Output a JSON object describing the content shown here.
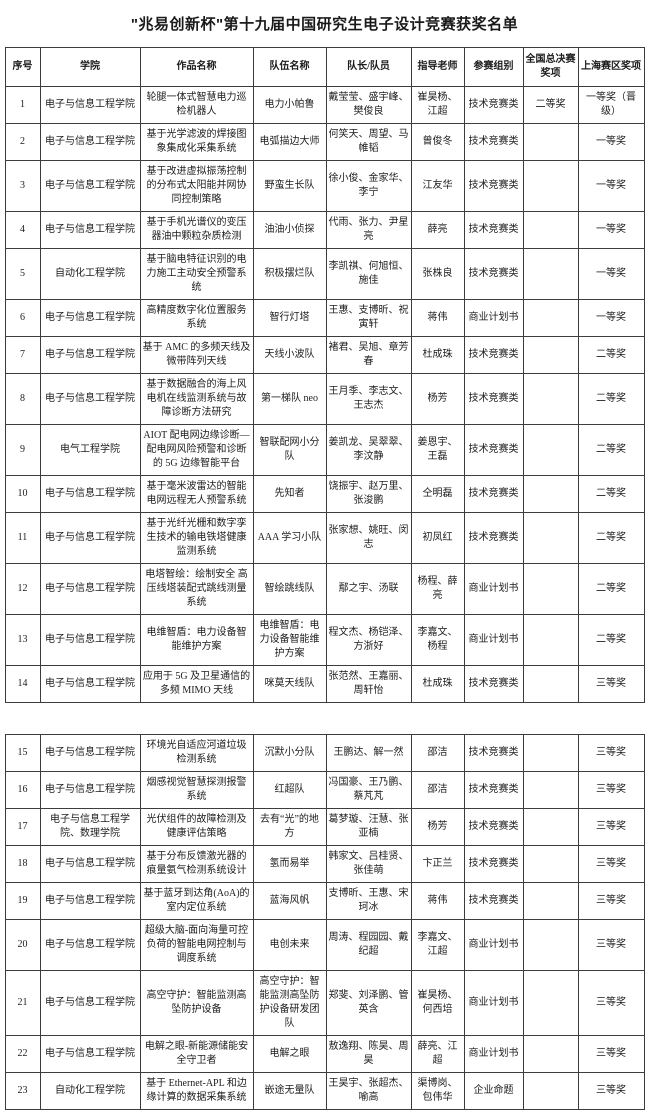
{
  "title": "\"兆易创新杯\"第十九届中国研究生电子设计竞赛获奖名单",
  "table": {
    "split_after_row": 14,
    "columns": [
      {
        "key": "no",
        "label": "序号"
      },
      {
        "key": "college",
        "label": "学院"
      },
      {
        "key": "work",
        "label": "作品名称"
      },
      {
        "key": "team",
        "label": "队伍名称"
      },
      {
        "key": "members",
        "label": "队长/队员"
      },
      {
        "key": "advisor",
        "label": "指导老师"
      },
      {
        "key": "category",
        "label": "参赛组别"
      },
      {
        "key": "national",
        "label": "全国总决赛奖项"
      },
      {
        "key": "regional",
        "label": "上海赛区奖项"
      }
    ],
    "rows": [
      {
        "no": "1",
        "college": "电子与信息工程学院",
        "work": "轮腿一体式智慧电力巡检机器人",
        "team": "电力小帕鲁",
        "members": "戴莹莹、盛宇峰、樊俊良",
        "advisor": "崔昊杨、江超",
        "category": "技术竞赛类",
        "national": "二等奖",
        "regional": "一等奖（晋级）"
      },
      {
        "no": "2",
        "college": "电子与信息工程学院",
        "work": "基于光学滤波的焊接图象集成化采集系统",
        "team": "电弧描边大师",
        "members": "何笑天、周望、马帷韬",
        "advisor": "曾俊冬",
        "category": "技术竞赛类",
        "national": "",
        "regional": "一等奖"
      },
      {
        "no": "3",
        "college": "电子与信息工程学院",
        "work": "基于改进虚拟振荡控制的分布式太阳能并网协同控制策略",
        "team": "野蛮生长队",
        "members": "徐小俊、金家华、李宁",
        "advisor": "江友华",
        "category": "技术竞赛类",
        "national": "",
        "regional": "一等奖"
      },
      {
        "no": "4",
        "college": "电子与信息工程学院",
        "work": "基于手机光谱仪的变压器油中颗粒杂质检测",
        "team": "油油小侦探",
        "members": "代雨、张力、尹星亮",
        "advisor": "薛亮",
        "category": "技术竞赛类",
        "national": "",
        "regional": "一等奖"
      },
      {
        "no": "5",
        "college": "自动化工程学院",
        "work": "基于脑电特征识别的电力施工主动安全预警系统",
        "team": "积极摆烂队",
        "members": "李凯祺、何旭恒、施佳",
        "advisor": "张株良",
        "category": "技术竞赛类",
        "national": "",
        "regional": "一等奖"
      },
      {
        "no": "6",
        "college": "电子与信息工程学院",
        "work": "高精度数字化位置服务系统",
        "team": "智行灯塔",
        "members": "王惠、支博昕、祝寅轩",
        "advisor": "蒋伟",
        "category": "商业计划书",
        "national": "",
        "regional": "一等奖"
      },
      {
        "no": "7",
        "college": "电子与信息工程学院",
        "work": "基于 AMC 的多频天线及微带阵列天线",
        "team": "天线小波队",
        "members": "褚君、吴旭、章芳春",
        "advisor": "杜成珠",
        "category": "技术竞赛类",
        "national": "",
        "regional": "二等奖"
      },
      {
        "no": "8",
        "college": "电子与信息工程学院",
        "work": "基于数据融合的海上风电机在线监测系统与故障诊断方法研究",
        "team": "第一梯队 neo",
        "members": "王月季、李志文、王志杰",
        "advisor": "杨芳",
        "category": "技术竞赛类",
        "national": "",
        "regional": "二等奖"
      },
      {
        "no": "9",
        "college": "电气工程学院",
        "work": "AIOT 配电网边缘诊断—配电网风险预警和诊断的 5G 边缘智能平台",
        "team": "智联配网小分队",
        "members": "姜凯龙、吴翠翠、李汶静",
        "advisor": "姜恩宇、王磊",
        "category": "技术竞赛类",
        "national": "",
        "regional": "二等奖"
      },
      {
        "no": "10",
        "college": "电子与信息工程学院",
        "work": "基于毫米波雷达的智能电网远程无人预警系统",
        "team": "先知者",
        "members": "饶振宇、赵万里、张浚鹏",
        "advisor": "仝明磊",
        "category": "技术竞赛类",
        "national": "",
        "regional": "二等奖"
      },
      {
        "no": "11",
        "college": "电子与信息工程学院",
        "work": "基于光纤光栅和数字孪生技术的输电铁塔健康监测系统",
        "team": "AAA 学习小队",
        "members": "张家想、姚旺、闵志",
        "advisor": "初凤红",
        "category": "技术竞赛类",
        "national": "",
        "regional": "二等奖"
      },
      {
        "no": "12",
        "college": "电子与信息工程学院",
        "work": "电塔智绘：绘制安全 高压线塔装配式跳线测量系统",
        "team": "智绘跳线队",
        "members": "鄢之宇、汤联",
        "advisor": "杨程、薛亮",
        "category": "商业计划书",
        "national": "",
        "regional": "二等奖"
      },
      {
        "no": "13",
        "college": "电子与信息工程学院",
        "work": "电维智盾：电力设备智能维护方案",
        "team": "电维智盾：电力设备智能维护方案",
        "members": "程文杰、杨铠泽、方浙好",
        "advisor": "李嘉文、杨程",
        "category": "商业计划书",
        "national": "",
        "regional": "二等奖"
      },
      {
        "no": "14",
        "college": "电子与信息工程学院",
        "work": "应用于 5G 及卫星通信的多频 MIMO 天线",
        "team": "咪莫天线队",
        "members": "张范然、王嘉丽、周轩怡",
        "advisor": "杜成珠",
        "category": "技术竞赛类",
        "national": "",
        "regional": "三等奖"
      },
      {
        "no": "15",
        "college": "电子与信息工程学院",
        "work": "环境光自适应河道垃圾检测系统",
        "team": "沉默小分队",
        "members": "王鹏达、解一然",
        "advisor": "邵洁",
        "category": "技术竞赛类",
        "national": "",
        "regional": "三等奖"
      },
      {
        "no": "16",
        "college": "电子与信息工程学院",
        "work": "烟感视觉智慧探测报警系统",
        "team": "红超队",
        "members": "冯国豪、王乃鹏、蔡芃芃",
        "advisor": "邵洁",
        "category": "技术竞赛类",
        "national": "",
        "regional": "三等奖"
      },
      {
        "no": "17",
        "college": "电子与信息工程学院、数理学院",
        "work": "光伏组件的故障检测及健康评估策略",
        "team": "去有“光”的地方",
        "members": "葛梦璇、汪慧、张亚楠",
        "advisor": "杨芳",
        "category": "技术竞赛类",
        "national": "",
        "regional": "三等奖"
      },
      {
        "no": "18",
        "college": "电子与信息工程学院",
        "work": "基于分布反馈激光器的痕量氨气检测系统设计",
        "team": "氢而易举",
        "members": "韩家文、吕桂贤、张佳萌",
        "advisor": "卞正兰",
        "category": "技术竞赛类",
        "national": "",
        "regional": "三等奖"
      },
      {
        "no": "19",
        "college": "电子与信息工程学院",
        "work": "基于蓝牙到达角(AoA)的室内定位系统",
        "team": "蓝海风帆",
        "members": "支博昕、王惠、宋珂冰",
        "advisor": "蒋伟",
        "category": "技术竞赛类",
        "national": "",
        "regional": "三等奖"
      },
      {
        "no": "20",
        "college": "电子与信息工程学院",
        "work": "超级大脑-面向海量可控负荷的智能电网控制与调度系统",
        "team": "电创未来",
        "members": "周涛、程园园、戴纪超",
        "advisor": "李嘉文、江超",
        "category": "商业计划书",
        "national": "",
        "regional": "三等奖"
      },
      {
        "no": "21",
        "college": "电子与信息工程学院",
        "work": "高空守护：智能监测高坠防护设备",
        "team": "高空守护：智能监测高坠防护设备研发团队",
        "members": "郑斐、刘泽鹏、管英含",
        "advisor": "崔昊杨、何西培",
        "category": "商业计划书",
        "national": "",
        "regional": "三等奖"
      },
      {
        "no": "22",
        "college": "电子与信息工程学院",
        "work": "电解之眼-新能源储能安全守卫者",
        "team": "电解之眼",
        "members": "敖逸翔、陈昊、周昊",
        "advisor": "薛亮、江超",
        "category": "商业计划书",
        "national": "",
        "regional": "三等奖"
      },
      {
        "no": "23",
        "college": "自动化工程学院",
        "work": "基于 Ethernet-APL 和边缘计算的数据采集系统",
        "team": "嵌途无量队",
        "members": "王昊宇、张超杰、喻高",
        "advisor": "渠博岗、包伟华",
        "category": "企业命题",
        "national": "",
        "regional": "三等奖"
      }
    ]
  }
}
